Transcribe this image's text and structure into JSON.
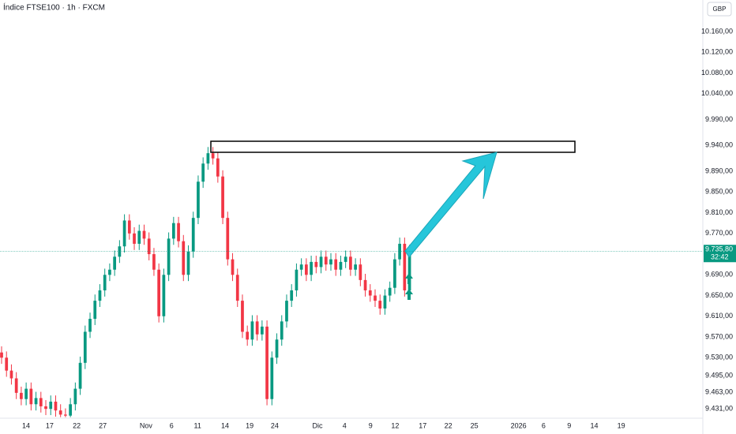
{
  "chart_data": {
    "type": "candlestick",
    "title": "Índice FTSE100 · 1h · FXCM",
    "currency": "GBP",
    "up_color": "#089981",
    "down_color": "#f23645",
    "grid": false,
    "open": [
      9540,
      9530,
      9505,
      9490,
      9462,
      9450,
      9470,
      9440,
      9452,
      9436,
      9431,
      9445,
      9428,
      9420,
      9418,
      9440,
      9470,
      9520,
      9580,
      9605,
      9640,
      9660,
      9690,
      9700,
      9725,
      9745,
      9795,
      9770,
      9750,
      9775,
      9760,
      9730,
      9700,
      9610,
      9690,
      9760,
      9790,
      9755,
      9690,
      9735,
      9800,
      9870,
      9905,
      9925,
      9915,
      9880,
      9800,
      9720,
      9690,
      9640,
      9580,
      9565,
      9600,
      9575,
      9590,
      9450,
      9530,
      9565,
      9600,
      9640,
      9660,
      9700,
      9710,
      9690,
      9715,
      9705,
      9725,
      9710,
      9720,
      9700,
      9715,
      9725,
      9700,
      9710,
      9680,
      9660,
      9650,
      9640,
      9625,
      9650,
      9665,
      9720,
      9750,
      9660
    ],
    "high": [
      9552,
      9542,
      9517,
      9502,
      9474,
      9482,
      9482,
      9464,
      9464,
      9448,
      9457,
      9457,
      9440,
      9432,
      9452,
      9482,
      9532,
      9592,
      9617,
      9652,
      9672,
      9702,
      9712,
      9737,
      9757,
      9807,
      9807,
      9782,
      9787,
      9787,
      9772,
      9742,
      9712,
      9702,
      9772,
      9802,
      9802,
      9767,
      9747,
      9812,
      9882,
      9917,
      9937,
      9937,
      9927,
      9892,
      9812,
      9732,
      9702,
      9652,
      9592,
      9612,
      9612,
      9602,
      9602,
      9542,
      9577,
      9612,
      9652,
      9672,
      9712,
      9722,
      9722,
      9727,
      9727,
      9737,
      9737,
      9732,
      9732,
      9727,
      9737,
      9737,
      9722,
      9722,
      9692,
      9672,
      9662,
      9652,
      9662,
      9677,
      9732,
      9762,
      9762,
      9748
    ],
    "low": [
      9518,
      9493,
      9478,
      9450,
      9438,
      9438,
      9428,
      9428,
      9424,
      9419,
      9419,
      9416,
      9415,
      9415,
      9415,
      9428,
      9458,
      9508,
      9568,
      9593,
      9628,
      9648,
      9678,
      9688,
      9713,
      9733,
      9758,
      9738,
      9738,
      9748,
      9718,
      9688,
      9598,
      9598,
      9678,
      9748,
      9743,
      9678,
      9678,
      9723,
      9788,
      9858,
      9893,
      9903,
      9868,
      9788,
      9708,
      9678,
      9628,
      9568,
      9553,
      9553,
      9563,
      9563,
      9438,
      9438,
      9518,
      9553,
      9588,
      9628,
      9648,
      9688,
      9678,
      9678,
      9693,
      9693,
      9698,
      9698,
      9688,
      9688,
      9703,
      9688,
      9688,
      9668,
      9648,
      9638,
      9628,
      9613,
      9613,
      9638,
      9653,
      9708,
      9648,
      9648
    ],
    "close": [
      9530,
      9505,
      9490,
      9462,
      9450,
      9470,
      9440,
      9452,
      9436,
      9431,
      9445,
      9428,
      9420,
      9418,
      9440,
      9470,
      9520,
      9580,
      9605,
      9640,
      9660,
      9690,
      9700,
      9725,
      9745,
      9795,
      9770,
      9750,
      9775,
      9760,
      9730,
      9700,
      9610,
      9690,
      9760,
      9790,
      9755,
      9690,
      9735,
      9800,
      9870,
      9905,
      9925,
      9915,
      9880,
      9800,
      9720,
      9690,
      9640,
      9580,
      9565,
      9600,
      9575,
      9590,
      9450,
      9530,
      9565,
      9600,
      9640,
      9660,
      9700,
      9710,
      9690,
      9715,
      9705,
      9725,
      9710,
      9720,
      9700,
      9715,
      9725,
      9700,
      9710,
      9680,
      9660,
      9650,
      9640,
      9625,
      9650,
      9665,
      9720,
      9750,
      9660,
      9735.8
    ],
    "xlim": [
      0,
      143
    ],
    "xticks": [
      {
        "value": 5.3,
        "label": "14"
      },
      {
        "value": 10.1,
        "label": "17"
      },
      {
        "value": 15.6,
        "label": "22"
      },
      {
        "value": 20.9,
        "label": "27"
      },
      {
        "value": 29.7,
        "label": "Nov"
      },
      {
        "value": 34.9,
        "label": "6"
      },
      {
        "value": 40.2,
        "label": "11"
      },
      {
        "value": 45.8,
        "label": "14"
      },
      {
        "value": 50.8,
        "label": "19"
      },
      {
        "value": 55.9,
        "label": "24"
      },
      {
        "value": 64.6,
        "label": "Dic"
      },
      {
        "value": 70.1,
        "label": "4"
      },
      {
        "value": 75.4,
        "label": "9"
      },
      {
        "value": 80.4,
        "label": "12"
      },
      {
        "value": 86,
        "label": "17"
      },
      {
        "value": 91.2,
        "label": "22"
      },
      {
        "value": 96.5,
        "label": "25"
      },
      {
        "value": 105.5,
        "label": "2026"
      },
      {
        "value": 110.6,
        "label": "6"
      },
      {
        "value": 115.8,
        "label": "9"
      },
      {
        "value": 120.9,
        "label": "14"
      },
      {
        "value": 126.4,
        "label": "19"
      }
    ],
    "ylim": [
      9413,
      10221
    ],
    "yticks": [
      {
        "value": 9431,
        "label": "9.431,00"
      },
      {
        "value": 9463,
        "label": "9.463,00"
      },
      {
        "value": 9495,
        "label": "9.495,00"
      },
      {
        "value": 9530,
        "label": "9.530,00"
      },
      {
        "value": 9570,
        "label": "9.570,00"
      },
      {
        "value": 9610,
        "label": "9.610,00"
      },
      {
        "value": 9650,
        "label": "9.650,00"
      },
      {
        "value": 9690,
        "label": "9.690,00"
      },
      {
        "value": 9770,
        "label": "9.770,00"
      },
      {
        "value": 9810,
        "label": "9.810,00"
      },
      {
        "value": 9850,
        "label": "9.850,00"
      },
      {
        "value": 9890,
        "label": "9.890,00"
      },
      {
        "value": 9940,
        "label": "9.940,00"
      },
      {
        "value": 9990,
        "label": "9.990,00"
      },
      {
        "value": 10040,
        "label": "10.040,00"
      },
      {
        "value": 10080,
        "label": "10.080,00"
      },
      {
        "value": 10120,
        "label": "10.120,00"
      },
      {
        "value": 10160,
        "label": "10.160,00"
      }
    ],
    "last": {
      "value": 9735.8,
      "label": "9.735,80"
    },
    "countdown": "32:42"
  }
}
